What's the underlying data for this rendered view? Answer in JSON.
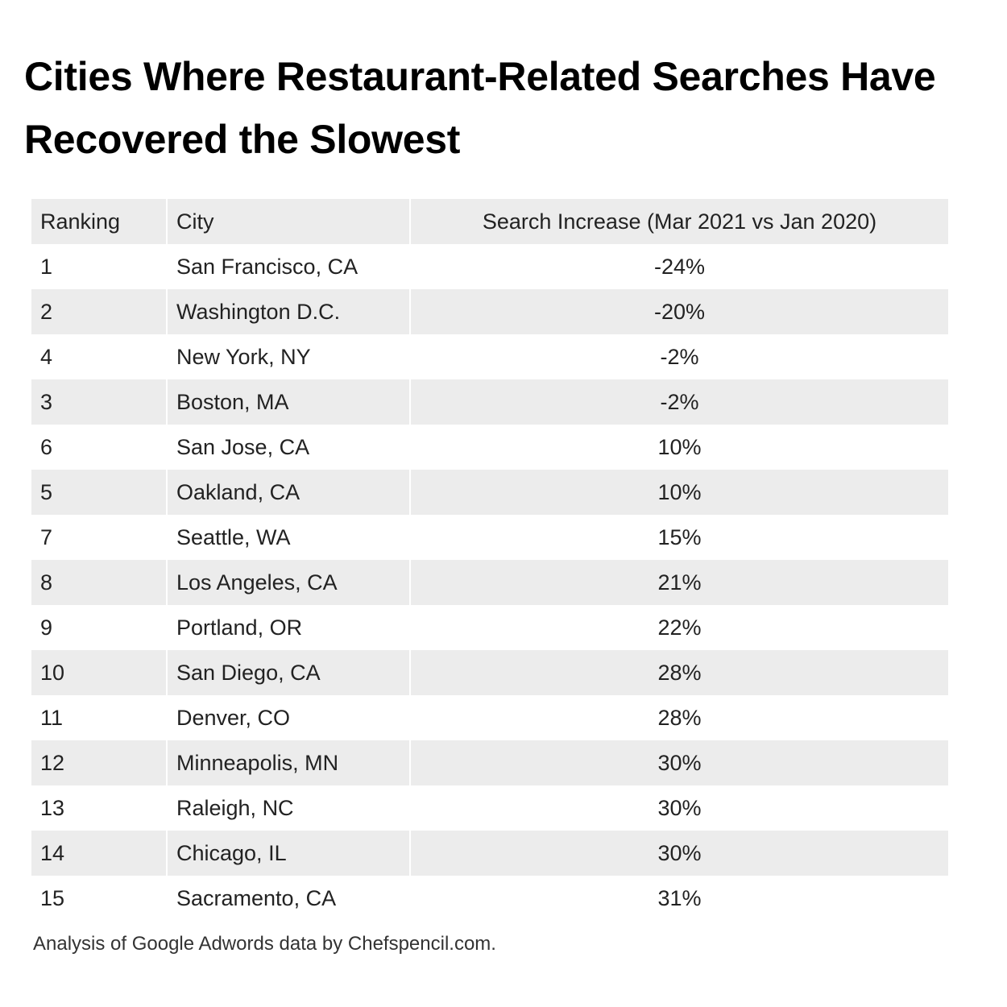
{
  "chart_data": {
    "type": "table",
    "title": "Cities Where Restaurant-Related Searches Have Recovered the Slowest",
    "columns": [
      "Ranking",
      "City",
      "Search Increase (Mar 2021 vs Jan 2020)"
    ],
    "rows": [
      [
        "1",
        "San Francisco, CA",
        "-24%"
      ],
      [
        "2",
        "Washington D.C.",
        "-20%"
      ],
      [
        "4",
        "New York, NY",
        "-2%"
      ],
      [
        "3",
        "Boston, MA",
        "-2%"
      ],
      [
        "6",
        "San Jose, CA",
        "10%"
      ],
      [
        "5",
        "Oakland, CA",
        "10%"
      ],
      [
        "7",
        "Seattle, WA",
        "15%"
      ],
      [
        "8",
        "Los Angeles, CA",
        "21%"
      ],
      [
        "9",
        "Portland, OR",
        "22%"
      ],
      [
        "10",
        "San Diego, CA",
        "28%"
      ],
      [
        "11",
        "Denver, CO",
        "28%"
      ],
      [
        "12",
        "Minneapolis, MN",
        "30%"
      ],
      [
        "13",
        "Raleigh, NC",
        "30%"
      ],
      [
        "14",
        "Chicago, IL",
        "30%"
      ],
      [
        "15",
        "Sacramento, CA",
        "31%"
      ]
    ],
    "source": "Analysis of Google Adwords data by Chefspencil.com."
  },
  "colors": {
    "header_background": "#ececec",
    "stripe_background": "#ececec",
    "text": "#222222",
    "title": "#000000"
  }
}
